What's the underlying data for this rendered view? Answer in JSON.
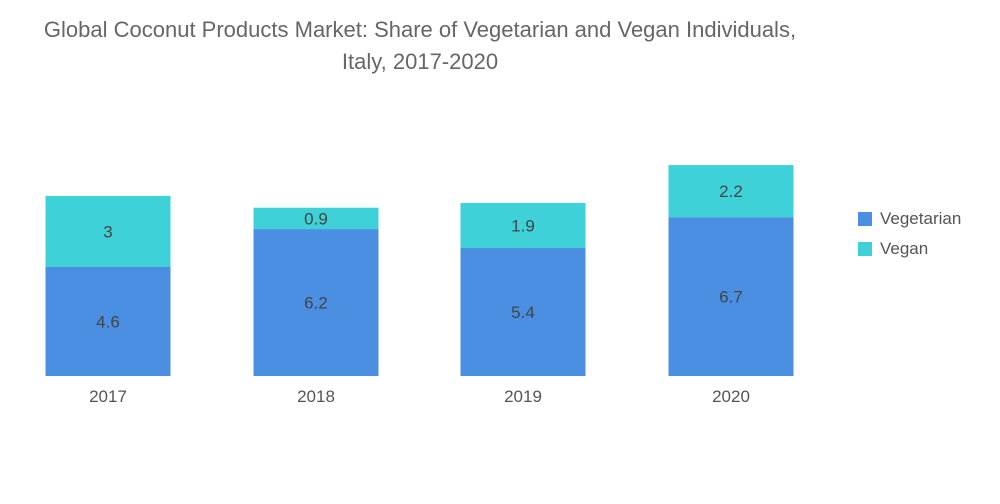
{
  "title": {
    "line1": "Global Coconut Products Market: Share of Vegetarian and Vegan Individuals,",
    "line2": "Italy, 2017-2020"
  },
  "legend": {
    "vegetarian": "Vegetarian",
    "vegan": "Vegan"
  },
  "colors": {
    "vegetarian": "#4a8fe2",
    "vegan": "#3ed1d8",
    "label": "#555555"
  },
  "chart_data": {
    "type": "bar",
    "stacked": true,
    "categories": [
      "2017",
      "2018",
      "2019",
      "2020"
    ],
    "series": [
      {
        "name": "Vegetarian",
        "values": [
          4.6,
          6.2,
          5.4,
          6.7
        ]
      },
      {
        "name": "Vegan",
        "values": [
          3,
          0.9,
          1.9,
          2.2
        ]
      }
    ],
    "value_labels": {
      "Vegetarian": [
        "4.6",
        "6.2",
        "5.4",
        "6.7"
      ],
      "Vegan": [
        "3",
        "0.9",
        "1.9",
        "2.2"
      ]
    },
    "title": "Global Coconut Products Market: Share of Vegetarian and Vegan Individuals, Italy, 2017-2020",
    "xlabel": "",
    "ylabel": "",
    "ylim": [
      0,
      9
    ],
    "grid": false,
    "legend_position": "right"
  }
}
